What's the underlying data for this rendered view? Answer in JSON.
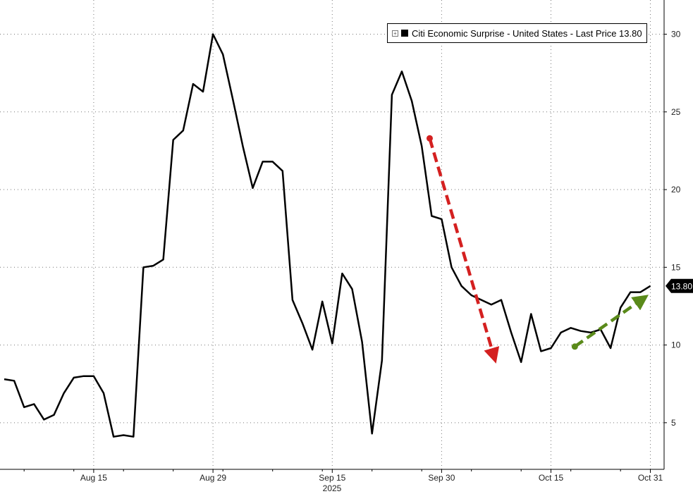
{
  "chart_data": {
    "type": "line",
    "xlabel": "2025",
    "x_ticks": [
      "Aug 15",
      "Aug 29",
      "Sep 15",
      "Sep 30",
      "Oct 15",
      "Oct 31"
    ],
    "y_ticks": [
      5,
      10,
      15,
      20,
      25,
      30
    ],
    "ylim": [
      2,
      32.2
    ],
    "grid": true,
    "legend": {
      "position": "top-right",
      "label": "Citi Economic Surprise - United States - Last Price 13.80"
    },
    "last_price_label": "13.80",
    "last_price_value": 13.8,
    "colors": {
      "series": "#000000",
      "down_arrow": "#d42020",
      "up_arrow": "#5a8a1a",
      "last_price_tag": "#000000"
    },
    "series": [
      {
        "values": [
          [
            0,
            7.8
          ],
          [
            1,
            7.7
          ],
          [
            2,
            6.0
          ],
          [
            3,
            6.2
          ],
          [
            4,
            5.2
          ],
          [
            5,
            5.5
          ],
          [
            6,
            6.9
          ],
          [
            7,
            7.9
          ],
          [
            8,
            8.0
          ],
          [
            9,
            8.0
          ],
          [
            10,
            6.9
          ],
          [
            11,
            4.1
          ],
          [
            12,
            4.2
          ],
          [
            13,
            4.1
          ],
          [
            14,
            15.0
          ],
          [
            15,
            15.1
          ],
          [
            16,
            15.5
          ],
          [
            17,
            23.2
          ],
          [
            18,
            23.8
          ],
          [
            19,
            26.8
          ],
          [
            20,
            26.3
          ],
          [
            21,
            30.0
          ],
          [
            22,
            28.7
          ],
          [
            23,
            25.8
          ],
          [
            24,
            22.8
          ],
          [
            25,
            20.1
          ],
          [
            26,
            21.8
          ],
          [
            27,
            21.8
          ],
          [
            28,
            21.2
          ],
          [
            29,
            12.9
          ],
          [
            30,
            11.4
          ],
          [
            31,
            9.7
          ],
          [
            32,
            12.8
          ],
          [
            33,
            10.1
          ],
          [
            34,
            14.6
          ],
          [
            35,
            13.6
          ],
          [
            36,
            10.2
          ],
          [
            37,
            4.3
          ],
          [
            38,
            9.0
          ],
          [
            39,
            26.1
          ],
          [
            40,
            27.6
          ],
          [
            41,
            25.7
          ],
          [
            42,
            22.8
          ],
          [
            43,
            18.3
          ],
          [
            44,
            18.1
          ],
          [
            45,
            15.0
          ],
          [
            46,
            13.8
          ],
          [
            47,
            13.2
          ],
          [
            48,
            12.9
          ],
          [
            49,
            12.6
          ],
          [
            50,
            12.9
          ],
          [
            51,
            10.8
          ],
          [
            52,
            8.9
          ],
          [
            53,
            12.0
          ],
          [
            54,
            9.6
          ],
          [
            55,
            9.8
          ],
          [
            56,
            10.8
          ],
          [
            57,
            11.1
          ],
          [
            58,
            10.9
          ],
          [
            59,
            10.8
          ],
          [
            60,
            11.0
          ],
          [
            61,
            9.8
          ],
          [
            62,
            12.4
          ],
          [
            63,
            13.4
          ],
          [
            64,
            13.4
          ],
          [
            65,
            13.8
          ]
        ]
      }
    ],
    "annotations": [
      {
        "type": "arrow",
        "color": "#d42020",
        "from": [
          42.8,
          23.3
        ],
        "to": [
          49.3,
          9.2
        ]
      },
      {
        "type": "arrow",
        "color": "#5a8a1a",
        "from": [
          57.4,
          9.9
        ],
        "to": [
          64.3,
          13.0
        ]
      }
    ]
  }
}
